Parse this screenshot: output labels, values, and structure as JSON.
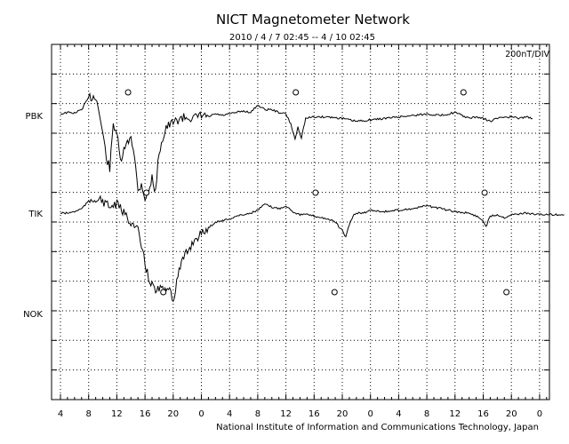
{
  "chart_data": {
    "type": "line",
    "title": "NICT Magnetometer Network",
    "subtitle": "2010 / 4 / 7   02:45 --  4 / 10   02:45",
    "scale_label": "200nT/DIV",
    "credit": "National Institute of Information and Communications Technology, Japan",
    "x_tick_labels": [
      "4",
      "8",
      "12",
      "16",
      "20",
      "0",
      "4",
      "8",
      "12",
      "16",
      "20",
      "0",
      "4",
      "8",
      "12",
      "16",
      "20",
      "0"
    ],
    "x_range_hours": [
      0,
      72
    ],
    "grid": true,
    "stations": [
      {
        "name": "PBK",
        "markers_hours": [
          9.6,
          33.4,
          57.2
        ],
        "points": [
          [
            0,
            0.05
          ],
          [
            1,
            0.1
          ],
          [
            2,
            0.08
          ],
          [
            3,
            0.2
          ],
          [
            4,
            0.6
          ],
          [
            5,
            0.65
          ],
          [
            5.5,
            0.1
          ],
          [
            6,
            -0.6
          ],
          [
            6.5,
            -1.4
          ],
          [
            7,
            -1.8
          ],
          [
            7.5,
            -0.3
          ],
          [
            8,
            -0.55
          ],
          [
            8.5,
            -1.6
          ],
          [
            9,
            -1.2
          ],
          [
            10,
            -0.7
          ],
          [
            10.5,
            -1.3
          ],
          [
            11,
            -2.6
          ],
          [
            11.5,
            -2.3
          ],
          [
            12,
            -2.8
          ],
          [
            12.5,
            -2.6
          ],
          [
            13,
            -2.1
          ],
          [
            13.5,
            -2.6
          ],
          [
            14,
            -1.2
          ],
          [
            15,
            -0.4
          ],
          [
            16,
            -0.25
          ],
          [
            17,
            -0.1
          ],
          [
            18,
            -0.05
          ],
          [
            19,
            -0.1
          ],
          [
            20,
            0.0
          ],
          [
            21,
            -0.05
          ],
          [
            22,
            0.05
          ],
          [
            23,
            0.0
          ],
          [
            24,
            0.05
          ],
          [
            25,
            0.1
          ],
          [
            26,
            0.15
          ],
          [
            27,
            0.1
          ],
          [
            28,
            0.35
          ],
          [
            29,
            0.2
          ],
          [
            30,
            0.2
          ],
          [
            31,
            0.1
          ],
          [
            32,
            0.05
          ],
          [
            32.7,
            -0.3
          ],
          [
            33.3,
            -0.8
          ],
          [
            33.7,
            -0.4
          ],
          [
            34.2,
            -0.75
          ],
          [
            34.8,
            -0.1
          ],
          [
            36,
            -0.05
          ],
          [
            38,
            -0.05
          ],
          [
            40,
            -0.1
          ],
          [
            42,
            -0.2
          ],
          [
            44,
            -0.15
          ],
          [
            46,
            -0.1
          ],
          [
            48,
            -0.05
          ],
          [
            50,
            0.0
          ],
          [
            52,
            0.05
          ],
          [
            54,
            0.0
          ],
          [
            56,
            0.1
          ],
          [
            57,
            0.0
          ],
          [
            58,
            -0.1
          ],
          [
            59,
            -0.05
          ],
          [
            60,
            -0.1
          ],
          [
            61,
            -0.2
          ],
          [
            62,
            -0.1
          ],
          [
            63,
            -0.05
          ],
          [
            64,
            -0.05
          ],
          [
            65,
            -0.1
          ],
          [
            66,
            -0.05
          ],
          [
            67,
            -0.1
          ]
        ]
      },
      {
        "name": "TIK",
        "markers_hours": [
          12.2,
          36.2,
          60.2
        ],
        "points": [
          [
            0,
            0.0
          ],
          [
            1,
            0.0
          ],
          [
            2,
            0.05
          ],
          [
            3,
            0.15
          ],
          [
            4,
            0.4
          ],
          [
            5,
            0.5
          ],
          [
            6,
            0.4
          ],
          [
            7,
            0.2
          ],
          [
            8,
            0.3
          ],
          [
            9,
            0.0
          ],
          [
            10,
            -0.3
          ],
          [
            11,
            -0.6
          ],
          [
            12,
            -1.7
          ],
          [
            12.5,
            -2.2
          ],
          [
            13,
            -2.4
          ],
          [
            13.5,
            -2.7
          ],
          [
            14,
            -2.5
          ],
          [
            14.5,
            -2.6
          ],
          [
            15,
            -2.7
          ],
          [
            15.5,
            -2.4
          ],
          [
            16,
            -3.0
          ],
          [
            16.5,
            -2.3
          ],
          [
            17,
            -1.8
          ],
          [
            18,
            -1.3
          ],
          [
            19,
            -0.9
          ],
          [
            20,
            -0.7
          ],
          [
            21,
            -0.5
          ],
          [
            22,
            -0.3
          ],
          [
            23,
            -0.25
          ],
          [
            24,
            -0.2
          ],
          [
            25,
            -0.1
          ],
          [
            26,
            -0.05
          ],
          [
            27,
            0.0
          ],
          [
            28,
            0.1
          ],
          [
            29,
            0.3
          ],
          [
            30,
            0.2
          ],
          [
            31,
            0.15
          ],
          [
            32,
            0.25
          ],
          [
            33,
            0.05
          ],
          [
            34,
            -0.05
          ],
          [
            35,
            -0.05
          ],
          [
            36,
            -0.1
          ],
          [
            37,
            -0.15
          ],
          [
            38,
            -0.2
          ],
          [
            39,
            -0.3
          ],
          [
            40,
            -0.6
          ],
          [
            40.5,
            -0.8
          ],
          [
            41,
            -0.4
          ],
          [
            41.5,
            -0.1
          ],
          [
            42,
            0.0
          ],
          [
            43,
            0.0
          ],
          [
            44,
            0.1
          ],
          [
            46,
            0.05
          ],
          [
            48,
            0.1
          ],
          [
            50,
            0.15
          ],
          [
            52,
            0.25
          ],
          [
            54,
            0.15
          ],
          [
            56,
            0.05
          ],
          [
            58,
            0.0
          ],
          [
            59,
            -0.1
          ],
          [
            60,
            -0.25
          ],
          [
            60.4,
            -0.45
          ],
          [
            61,
            -0.1
          ],
          [
            62,
            -0.05
          ],
          [
            63,
            -0.15
          ],
          [
            64,
            -0.05
          ],
          [
            66,
            0.0
          ],
          [
            68,
            -0.05
          ],
          [
            70,
            -0.05
          ],
          [
            71.5,
            -0.05
          ]
        ]
      },
      {
        "name": "NOK",
        "markers_hours": [
          14.6,
          38.9,
          63.3
        ],
        "points": []
      }
    ]
  }
}
